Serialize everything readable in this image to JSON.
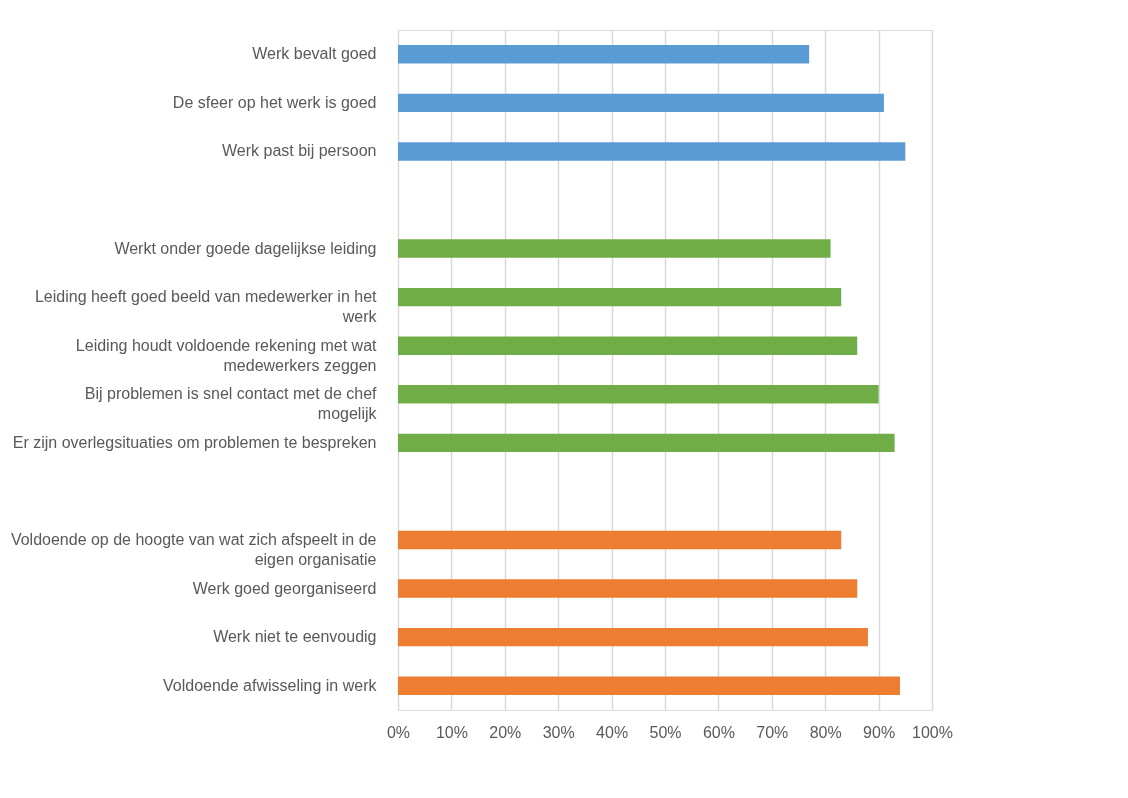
{
  "chart_data": {
    "type": "bar",
    "orientation": "horizontal",
    "categories": [
      "Werk bevalt goed",
      "De sfeer op het werk is goed",
      "Werk past bij persoon",
      null,
      "Werkt onder goede dagelijkse leiding",
      "Leiding heeft goed beeld van medewerker in het werk",
      "Leiding houdt voldoende rekening met wat medewerkers zeggen",
      "Bij problemen is  snel contact met de chef mogelijk",
      "Er zijn overlegsituaties om problemen te bespreken",
      null,
      "Voldoende op de hoogte van wat zich afspeelt in de eigen organisatie",
      "Werk goed georganiseerd",
      "Werk niet te eenvoudig",
      "Voldoende afwisseling in werk"
    ],
    "values": [
      77,
      91,
      95,
      null,
      81,
      83,
      86,
      90,
      93,
      null,
      83,
      86,
      88,
      94
    ],
    "colors": [
      "#5b9bd5",
      "#5b9bd5",
      "#5b9bd5",
      null,
      "#70ad47",
      "#70ad47",
      "#70ad47",
      "#70ad47",
      "#70ad47",
      null,
      "#ed7d31",
      "#ed7d31",
      "#ed7d31",
      "#ed7d31"
    ],
    "xlim": [
      0,
      100
    ],
    "xticks": [
      {
        "value": 0,
        "label": "0%"
      },
      {
        "value": 10,
        "label": "10%"
      },
      {
        "value": 20,
        "label": "20%"
      },
      {
        "value": 30,
        "label": "30%"
      },
      {
        "value": 40,
        "label": "40%"
      },
      {
        "value": 50,
        "label": "50%"
      },
      {
        "value": 60,
        "label": "60%"
      },
      {
        "value": 70,
        "label": "70%"
      },
      {
        "value": 80,
        "label": "80%"
      },
      {
        "value": 90,
        "label": "90%"
      },
      {
        "value": 100,
        "label": "100%"
      }
    ],
    "grid": "x"
  }
}
